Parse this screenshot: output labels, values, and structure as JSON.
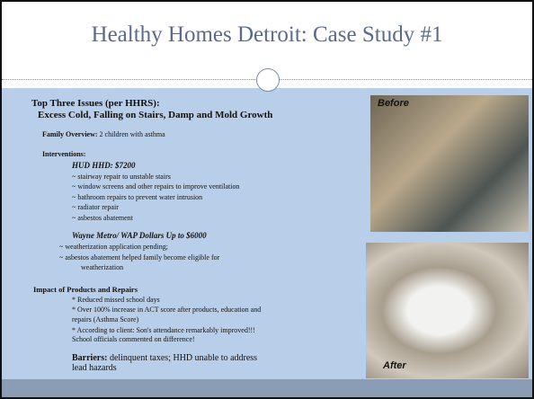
{
  "header": {
    "title": "Healthy Homes Detroit: Case Study #1"
  },
  "issues": {
    "heading": "Top Three Issues (per HHRS):",
    "list": "Excess Cold, Falling on Stairs, Damp and Mold Growth"
  },
  "family": {
    "label": "Family Overview:",
    "text": "2 children with asthma"
  },
  "interventions": {
    "heading": "Interventions:",
    "hud": {
      "title": "HUD HHD: $7200",
      "items": [
        "~ stairway repair to unstable stairs",
        "~ window screens and other repairs to improve ventilation",
        "~ bathroom repairs to prevent water intrusion",
        "~ radiator repair",
        "~ asbestos abatement"
      ]
    },
    "wap": {
      "title": "Wayne Metro/ WAP Dollars Up to $6000",
      "items": [
        "~  weatherization application pending;",
        "~  asbestos abatement helped family become eligible for",
        "weatherization"
      ]
    }
  },
  "impact": {
    "heading": "Impact of Products and Repairs",
    "lines": [
      "* Reduced missed school days",
      "* Over 100% increase in ACT score after products, education and",
      "repairs (Asthma Score)",
      "* According to client: Son's attendance remarkably improved!!!",
      "School officials commented on difference!"
    ]
  },
  "barriers": {
    "label": "Barriers:",
    "lines": [
      "delinquent taxes; HHD unable to address",
      "lead hazards"
    ]
  },
  "photos": {
    "before": "Before",
    "after": "After"
  }
}
